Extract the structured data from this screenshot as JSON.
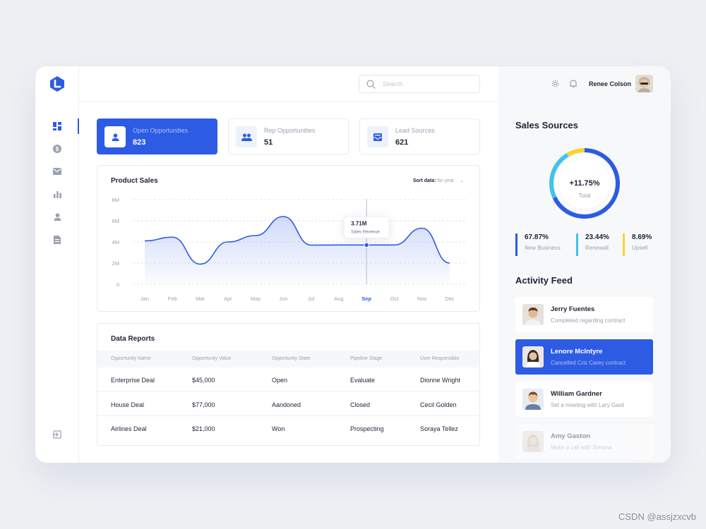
{
  "header": {
    "search_placeholder": "Search",
    "user_name": "Renee Colson"
  },
  "stat_cards": [
    {
      "label": "Open Opportunities",
      "value": "823",
      "icon": "user-icon",
      "active": true
    },
    {
      "label": "Rep Opportunities",
      "value": "51",
      "icon": "users-icon",
      "active": false
    },
    {
      "label": "Lead Sources",
      "value": "621",
      "icon": "inbox-icon",
      "active": false
    }
  ],
  "sidebar": {
    "items": [
      "dashboard-icon",
      "dollar-icon",
      "mail-icon",
      "bar-chart-icon",
      "person-icon",
      "document-icon"
    ],
    "logout_icon": "logout-icon"
  },
  "product_sales": {
    "title": "Product Sales",
    "sort_label": "Sort data:",
    "sort_value": "for year",
    "tooltip_value": "3.71M",
    "tooltip_label": "Sales Revenue"
  },
  "chart_data": {
    "type": "area",
    "x": [
      "Jan",
      "Feb",
      "Mar",
      "Apr",
      "May",
      "Jun",
      "Jul",
      "Aug",
      "Sep",
      "Oct",
      "Nov",
      "Dec"
    ],
    "values": [
      4.1,
      4.45,
      1.9,
      4.0,
      4.6,
      6.4,
      3.7,
      3.71,
      3.71,
      3.71,
      5.3,
      2.0
    ],
    "yticks": [
      "0",
      "2M",
      "4M",
      "6M",
      "8M"
    ],
    "ylim": [
      0,
      8
    ],
    "highlight_index": 8,
    "grid": true,
    "line_color": "#2d5be3"
  },
  "data_reports": {
    "title": "Data Reports",
    "columns": [
      "Opportunity Name",
      "Opportunity Value",
      "Opportunity State",
      "Pipeline Stage",
      "User Responsible"
    ],
    "rows": [
      [
        "Enterprise Deal",
        "$45,000",
        "Open",
        "Evaluate",
        "Dionne Wright"
      ],
      [
        "House Deal",
        "$77,000",
        "Aandoned",
        "Closed",
        "Cecil Golden"
      ],
      [
        "Airlines Deal",
        "$21,000",
        "Won",
        "Prospecting",
        "Soraya Tellez"
      ]
    ]
  },
  "sales_sources": {
    "title": "Sales Sources",
    "center_value": "+11.75%",
    "center_label": "Total",
    "segments": [
      {
        "value": "67.87%",
        "label": "New Business",
        "color": "#2d5be3",
        "pct": 67.87
      },
      {
        "value": "23.44%",
        "label": "Renewall",
        "color": "#3fc3ee",
        "pct": 23.44
      },
      {
        "value": "8.69%",
        "label": "Upsell",
        "color": "#fdd22e",
        "pct": 8.69
      }
    ]
  },
  "activity_feed": {
    "title": "Activity Feed",
    "items": [
      {
        "name": "Jerry Fuentes",
        "desc": "Completed regarding contract"
      },
      {
        "name": "Lenore McIntyre",
        "desc": "Cancelled Cris Carey contract"
      },
      {
        "name": "William Gardner",
        "desc": "Set a meeting with Lary Gard"
      },
      {
        "name": "Amy Gaston",
        "desc": "Make a call with Simona"
      }
    ]
  },
  "watermark": "CSDN @assjzxcvb"
}
